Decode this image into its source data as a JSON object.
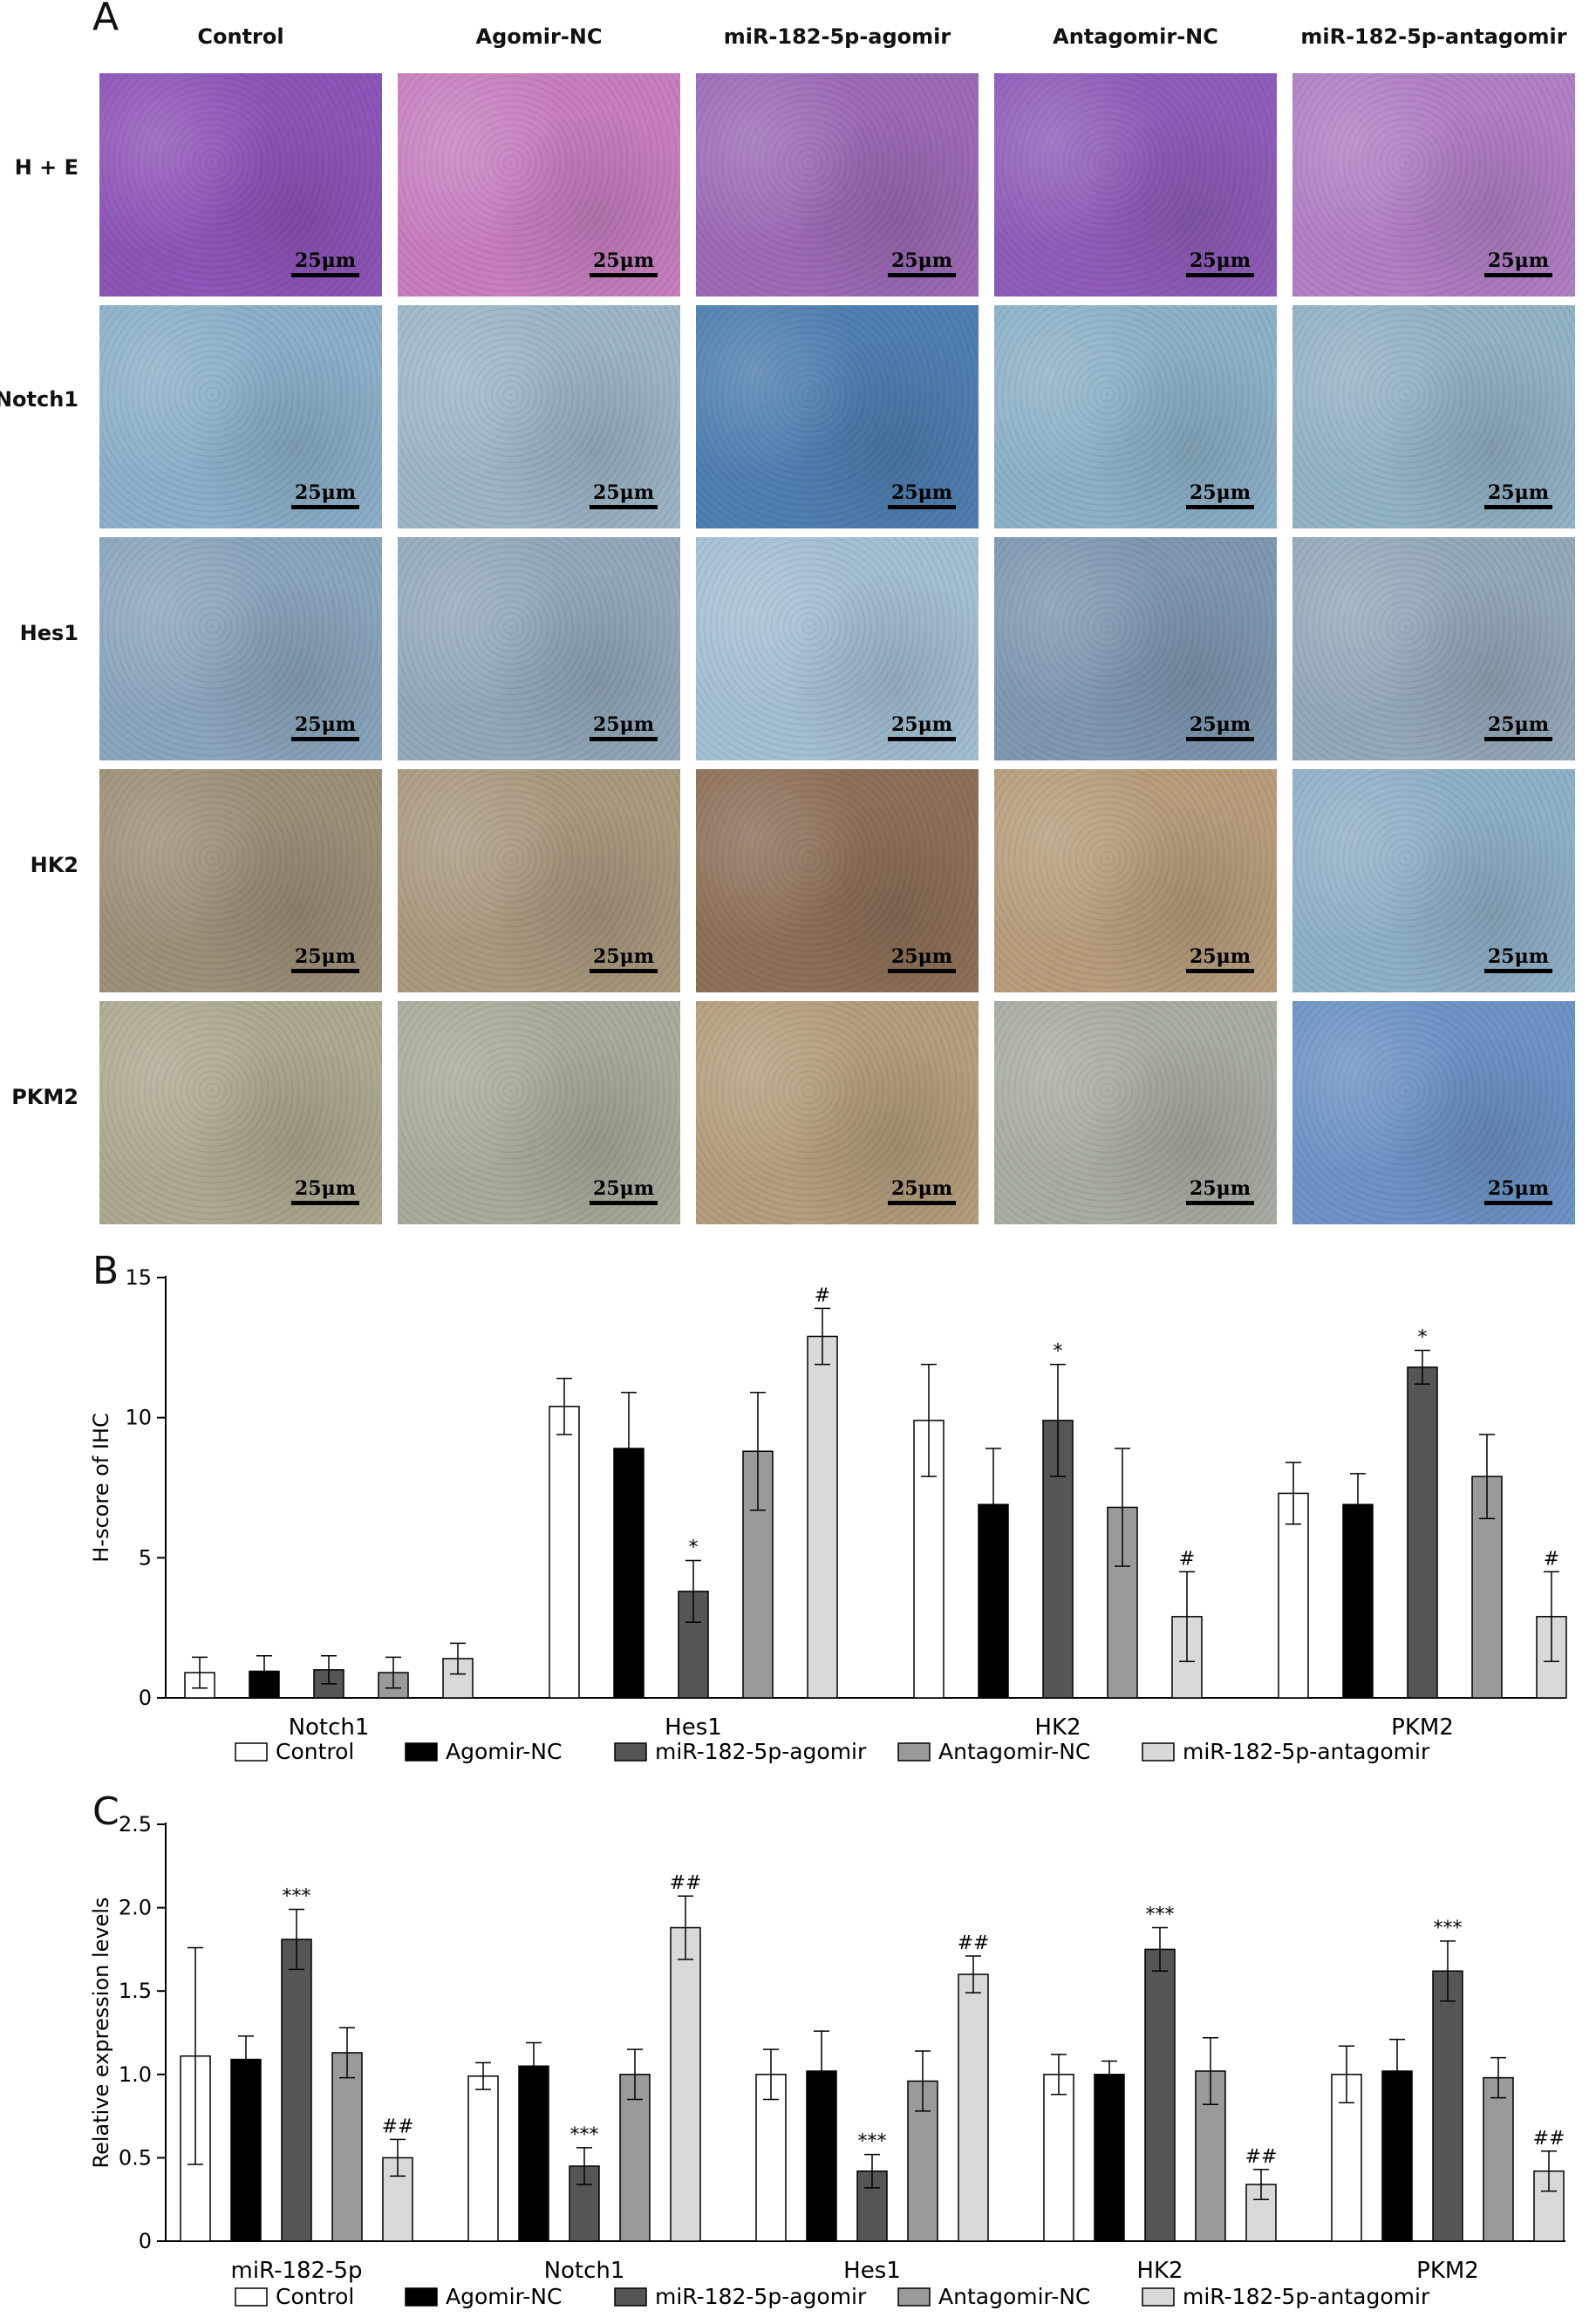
{
  "panels": {
    "a": {
      "letter": "A",
      "column_headers": [
        "Control",
        "Agomir-NC",
        "miR-182-5p-agomir",
        "Antagomir-NC",
        "miR-182-5p-antagomir"
      ],
      "row_labels": [
        "H + E",
        "Notch1",
        "Hes1",
        "HK2",
        "PKM2"
      ],
      "scale_bar_label": "25μm",
      "stain_colors": {
        "he": [
          "#8e55b8",
          "#c77fbf",
          "#9c6bb6",
          "#8f5db9",
          "#b07fc4"
        ],
        "notch1": [
          "#8cb0c9",
          "#9cb6c8",
          "#4f7fb0",
          "#8db1c8",
          "#92b2c6"
        ],
        "hes1": [
          "#8aa6bd",
          "#93a9bb",
          "#a3bfd4",
          "#7e98b1",
          "#95a9b9"
        ],
        "hk2": [
          "#9d9078",
          "#a99a7e",
          "#8e7058",
          "#b79d7c",
          "#8fb0c8"
        ],
        "pkm2": [
          "#aea991",
          "#a9ab9c",
          "#b59d7d",
          "#a8ada2",
          "#6d93c5"
        ]
      }
    },
    "b": {
      "letter": "B"
    },
    "c": {
      "letter": "C"
    }
  },
  "legend": {
    "labels": [
      "Control",
      "Agomir-NC",
      "miR-182-5p-agomir",
      "Antagomir-NC",
      "miR-182-5p-antagomir"
    ],
    "colors": [
      "#ffffff",
      "#000000",
      "#555555",
      "#9a9a9a",
      "#d9d9d9"
    ]
  },
  "chart_data": [
    {
      "type": "bar",
      "ylabel": "H-score of IHC",
      "xlabel": "",
      "ylim": [
        0,
        15
      ],
      "yticks": [
        0,
        5,
        10,
        15
      ],
      "categories": [
        "Notch1",
        "Hes1",
        "HK2",
        "PKM2"
      ],
      "series": [
        {
          "name": "Control",
          "values": [
            0.9,
            10.4,
            9.9,
            7.3
          ],
          "errors": [
            0.55,
            1.0,
            2.0,
            1.1
          ],
          "annotations": [
            "",
            "",
            "",
            ""
          ]
        },
        {
          "name": "Agomir-NC",
          "values": [
            0.95,
            8.9,
            6.9,
            6.9
          ],
          "errors": [
            0.55,
            2.0,
            2.0,
            1.1
          ],
          "annotations": [
            "",
            "",
            "",
            ""
          ]
        },
        {
          "name": "miR-182-5p-agomir",
          "values": [
            1.0,
            3.8,
            9.9,
            11.8
          ],
          "errors": [
            0.5,
            1.1,
            2.0,
            0.6
          ],
          "annotations": [
            "",
            "*",
            "*",
            "*"
          ]
        },
        {
          "name": "Antagomir-NC",
          "values": [
            0.9,
            8.8,
            6.8,
            7.9
          ],
          "errors": [
            0.55,
            2.1,
            2.1,
            1.5
          ],
          "annotations": [
            "",
            "",
            "",
            ""
          ]
        },
        {
          "name": "miR-182-5p-antagomir",
          "values": [
            1.4,
            12.9,
            2.9,
            2.9
          ],
          "errors": [
            0.55,
            1.0,
            1.6,
            1.6
          ],
          "annotations": [
            "",
            "#",
            "#",
            "#"
          ]
        }
      ]
    },
    {
      "type": "bar",
      "ylabel": "Relative expression levels",
      "xlabel": "",
      "ylim": [
        0,
        2.5
      ],
      "yticks": [
        "0",
        "0.5",
        "1.0",
        "1.5",
        "2.0",
        "2.5"
      ],
      "categories": [
        "miR-182-5p",
        "Notch1",
        "Hes1",
        "HK2",
        "PKM2"
      ],
      "series": [
        {
          "name": "Control",
          "values": [
            1.11,
            0.99,
            1.0,
            1.0,
            1.0
          ],
          "errors": [
            0.65,
            0.08,
            0.15,
            0.12,
            0.17
          ],
          "annotations": [
            "",
            "",
            "",
            "",
            ""
          ]
        },
        {
          "name": "Agomir-NC",
          "values": [
            1.09,
            1.05,
            1.02,
            1.0,
            1.02
          ],
          "errors": [
            0.14,
            0.14,
            0.24,
            0.08,
            0.19
          ],
          "annotations": [
            "",
            "",
            "",
            "",
            ""
          ]
        },
        {
          "name": "miR-182-5p-agomir",
          "values": [
            1.81,
            0.45,
            0.42,
            1.75,
            1.62
          ],
          "errors": [
            0.18,
            0.11,
            0.1,
            0.13,
            0.18
          ],
          "annotations": [
            "***",
            "***",
            "***",
            "***",
            "***"
          ]
        },
        {
          "name": "Antagomir-NC",
          "values": [
            1.13,
            1.0,
            0.96,
            1.02,
            0.98
          ],
          "errors": [
            0.15,
            0.15,
            0.18,
            0.2,
            0.12
          ],
          "annotations": [
            "",
            "",
            "",
            "",
            ""
          ]
        },
        {
          "name": "miR-182-5p-antagomir",
          "values": [
            0.5,
            1.88,
            1.6,
            0.34,
            0.42
          ],
          "errors": [
            0.11,
            0.19,
            0.11,
            0.09,
            0.12
          ],
          "annotations": [
            "##",
            "##",
            "##",
            "##",
            "##"
          ]
        }
      ]
    }
  ]
}
